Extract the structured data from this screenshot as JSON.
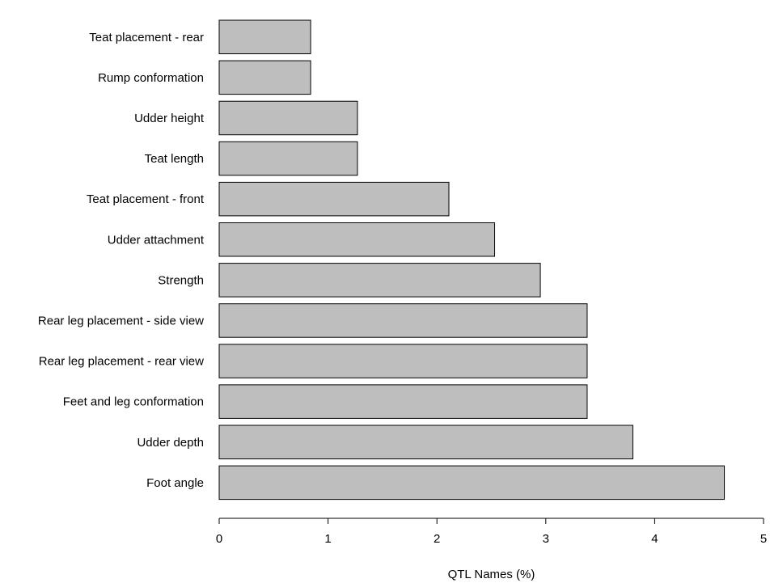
{
  "chart_data": {
    "type": "bar",
    "orientation": "horizontal",
    "title": "",
    "xlabel": "QTL Names (%)",
    "ylabel": "",
    "categories": [
      "Teat placement - rear",
      "Rump conformation",
      "Udder height",
      "Teat length",
      "Teat placement - front",
      "Udder attachment",
      "Strength",
      "Rear leg placement - side view",
      "Rear leg placement - rear view",
      "Feet and leg conformation",
      "Udder depth",
      "Foot angle"
    ],
    "values": [
      0.84,
      0.84,
      1.27,
      1.27,
      2.11,
      2.53,
      2.95,
      3.38,
      3.38,
      3.38,
      3.8,
      4.64
    ],
    "xlim": [
      0,
      5
    ],
    "xticks": [
      "0",
      "1",
      "2",
      "3",
      "4",
      "5"
    ],
    "grid": false,
    "bar_color": "#bebebe",
    "bar_edge_color": "#000000"
  }
}
